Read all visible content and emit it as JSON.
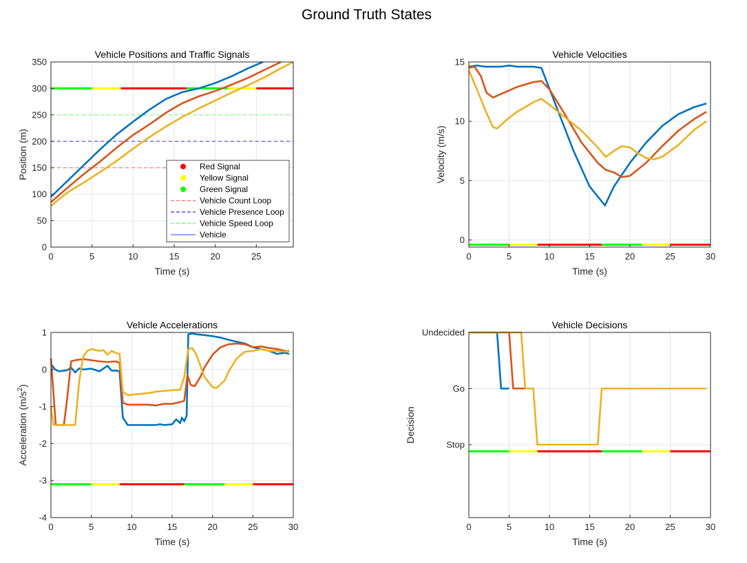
{
  "figure_title": "Ground Truth States",
  "colors": {
    "vehicle_1": "#0072BD",
    "vehicle_2": "#D95319",
    "vehicle_3": "#EDB120",
    "signal_green": "#00FF00",
    "signal_yellow": "#FFFF00",
    "signal_red": "#FF0000",
    "count_loop": "#FF6666",
    "presence_loop": "#3333FF",
    "speed_loop": "#66FF66",
    "legend_vehicle": "#6666FF"
  },
  "chart_data": [
    {
      "id": "positions",
      "type": "line",
      "title": "Vehicle Positions and Traffic Signals",
      "xlabel": "Time (s)",
      "ylabel": "Position (m)",
      "xlim": [
        0,
        29.5
      ],
      "ylim": [
        0,
        350
      ],
      "xticks": [
        0,
        5,
        10,
        15,
        20,
        25
      ],
      "yticks": [
        0,
        50,
        100,
        150,
        200,
        250,
        300,
        350
      ],
      "grid": true,
      "legend_location": "lower-right",
      "legend": [
        {
          "label": "Red Signal",
          "kind": "dot",
          "color": "#FF0000"
        },
        {
          "label": "Yellow Signal",
          "kind": "dot",
          "color": "#FFFF00"
        },
        {
          "label": "Green Signal",
          "kind": "dot",
          "color": "#00FF00"
        },
        {
          "label": "Vehicle Count Loop",
          "kind": "dash",
          "color": "#FF6666"
        },
        {
          "label": "Vehicle Presence Loop",
          "kind": "dash",
          "color": "#3333FF"
        },
        {
          "label": "Vehicle Speed Loop",
          "kind": "dash",
          "color": "#66FF66"
        },
        {
          "label": "Vehicle",
          "kind": "line",
          "color": "#6666FF"
        }
      ],
      "loops": [
        {
          "y": 150,
          "color": "#FF6666"
        },
        {
          "y": 200,
          "color": "#3333FF"
        },
        {
          "y": 250,
          "color": "#66FF66"
        }
      ],
      "signal_y": 300,
      "signal_phases": [
        {
          "start": 0,
          "end": 5,
          "color": "#00FF00"
        },
        {
          "start": 5,
          "end": 8.5,
          "color": "#FFFF00"
        },
        {
          "start": 8.5,
          "end": 16.5,
          "color": "#FF0000"
        },
        {
          "start": 16.5,
          "end": 21.5,
          "color": "#00FF00"
        },
        {
          "start": 21.5,
          "end": 25,
          "color": "#FFFF00"
        },
        {
          "start": 25,
          "end": 29.5,
          "color": "#FF0000"
        }
      ],
      "series": [
        {
          "color": "#0072BD",
          "x": [
            0,
            2,
            4,
            6,
            8,
            10,
            12,
            14,
            16,
            18,
            20,
            22,
            24,
            25.8
          ],
          "y": [
            95,
            125,
            155,
            185,
            213,
            237,
            260,
            280,
            293,
            300,
            310,
            323,
            338,
            350
          ]
        },
        {
          "color": "#D95319",
          "x": [
            0,
            2,
            4,
            6,
            8,
            10,
            12,
            14,
            16,
            18,
            20,
            22,
            24,
            26,
            28
          ],
          "y": [
            85,
            112,
            138,
            162,
            188,
            212,
            232,
            254,
            272,
            285,
            295,
            307,
            320,
            335,
            350
          ]
        },
        {
          "color": "#EDB120",
          "x": [
            0,
            2,
            4,
            6,
            8,
            10,
            12,
            14,
            16,
            18,
            20,
            22,
            24,
            26,
            28,
            29.5
          ],
          "y": [
            78,
            103,
            122,
            142,
            163,
            186,
            208,
            228,
            246,
            262,
            277,
            292,
            306,
            321,
            338,
            350
          ]
        }
      ]
    },
    {
      "id": "velocities",
      "type": "line",
      "title": "Vehicle Velocities",
      "xlabel": "Time (s)",
      "ylabel": "Velocity (m/s)",
      "xlim": [
        0,
        30
      ],
      "ylim": [
        -0.6,
        15
      ],
      "xticks": [
        0,
        5,
        10,
        15,
        20,
        25,
        30
      ],
      "yticks": [
        0,
        5,
        10,
        15
      ],
      "grid": true,
      "signal_y": -0.4,
      "signal_phases": [
        {
          "start": 0,
          "end": 5,
          "color": "#00FF00"
        },
        {
          "start": 5,
          "end": 8.5,
          "color": "#FFFF00"
        },
        {
          "start": 8.5,
          "end": 16.5,
          "color": "#FF0000"
        },
        {
          "start": 16.5,
          "end": 21.5,
          "color": "#00FF00"
        },
        {
          "start": 21.5,
          "end": 25,
          "color": "#FFFF00"
        },
        {
          "start": 25,
          "end": 30,
          "color": "#FF0000"
        }
      ],
      "series": [
        {
          "color": "#0072BD",
          "x": [
            0,
            1,
            2,
            3,
            4,
            5,
            6,
            7,
            8,
            9,
            11,
            13,
            15,
            16.9,
            18,
            20,
            22,
            24,
            26,
            28,
            29.5
          ],
          "y": [
            14.6,
            14.7,
            14.6,
            14.6,
            14.6,
            14.7,
            14.6,
            14.6,
            14.6,
            14.5,
            11,
            7.5,
            4.5,
            2.9,
            4.5,
            6.5,
            8.2,
            9.6,
            10.6,
            11.2,
            11.5
          ]
        },
        {
          "color": "#D95319",
          "x": [
            0,
            0.7,
            1.5,
            2.2,
            3,
            4,
            5,
            6,
            7,
            8,
            9,
            10,
            12,
            14,
            16,
            17,
            18,
            19,
            20,
            22,
            24,
            26,
            28,
            29.5
          ],
          "y": [
            14.5,
            14.6,
            13.8,
            12.4,
            12.0,
            12.3,
            12.6,
            12.9,
            13.1,
            13.3,
            13.4,
            12.7,
            10.5,
            8.2,
            6.5,
            5.9,
            5.7,
            5.3,
            5.4,
            6.5,
            7.9,
            9.2,
            10.2,
            10.8
          ]
        },
        {
          "color": "#EDB120",
          "x": [
            0,
            1,
            2,
            3,
            3.5,
            4,
            5,
            6,
            7,
            8,
            9,
            10,
            12,
            14,
            16,
            17,
            18,
            19,
            20,
            21,
            22,
            23,
            24,
            26,
            28,
            29.5
          ],
          "y": [
            14.3,
            12.7,
            11.0,
            9.5,
            9.4,
            9.7,
            10.3,
            10.8,
            11.2,
            11.6,
            11.9,
            11.4,
            10.3,
            9.2,
            7.8,
            7.0,
            7.5,
            7.9,
            7.8,
            7.3,
            6.9,
            6.8,
            7.0,
            8.0,
            9.3,
            10.0
          ]
        }
      ]
    },
    {
      "id": "accelerations",
      "type": "line",
      "title": "Vehicle Accelerations",
      "xlabel": "Time (s)",
      "ylabel": "Acceleration (m/s²)",
      "ylabel_base": "Acceleration (m/s",
      "ylabel_sup": "2",
      "ylabel_end": ")",
      "xlim": [
        0,
        30
      ],
      "ylim": [
        -4,
        1
      ],
      "xticks": [
        0,
        5,
        10,
        15,
        20,
        25,
        30
      ],
      "yticks": [
        -4,
        -3,
        -2,
        -1,
        0,
        1
      ],
      "grid": true,
      "signal_y": -3.1,
      "signal_phases": [
        {
          "start": 0,
          "end": 5,
          "color": "#00FF00"
        },
        {
          "start": 5,
          "end": 8.5,
          "color": "#FFFF00"
        },
        {
          "start": 8.5,
          "end": 16.5,
          "color": "#FF0000"
        },
        {
          "start": 16.5,
          "end": 21.5,
          "color": "#00FF00"
        },
        {
          "start": 21.5,
          "end": 25,
          "color": "#FFFF00"
        },
        {
          "start": 25,
          "end": 30,
          "color": "#FF0000"
        }
      ],
      "series": [
        {
          "color": "#0072BD",
          "x": [
            0,
            0.5,
            1,
            2,
            2.5,
            3,
            3.5,
            4,
            5,
            6,
            7,
            7.5,
            8,
            8.5,
            8.9,
            9.5,
            10,
            11,
            12,
            13,
            13.5,
            14,
            15,
            15.5,
            16,
            16.2,
            16.5,
            16.8,
            17,
            17.5,
            18,
            19,
            20,
            21,
            22,
            23,
            24,
            25,
            26,
            27,
            28,
            29,
            29.5
          ],
          "y": [
            0.15,
            0.0,
            -0.05,
            -0.02,
            0.05,
            -0.08,
            0.03,
            0.0,
            0.02,
            -0.05,
            0.1,
            -0.03,
            -0.03,
            -0.05,
            -1.3,
            -1.5,
            -1.5,
            -1.5,
            -1.5,
            -1.5,
            -1.48,
            -1.5,
            -1.48,
            -1.35,
            -1.45,
            -1.3,
            -1.4,
            -1.25,
            0.95,
            0.97,
            0.95,
            0.93,
            0.9,
            0.86,
            0.8,
            0.75,
            0.7,
            0.6,
            0.55,
            0.5,
            0.42,
            0.45,
            0.42
          ]
        },
        {
          "color": "#D95319",
          "x": [
            0,
            0.3,
            0.6,
            1.2,
            1.6,
            2,
            2.5,
            3,
            4,
            5,
            6,
            7,
            8,
            8.5,
            8.9,
            9.5,
            10,
            11,
            12,
            13,
            14,
            15,
            16,
            16.5,
            16.9,
            17.3,
            17.8,
            18.5,
            19,
            20,
            21,
            22,
            23,
            24,
            25,
            26,
            27,
            28,
            29,
            29.5
          ],
          "y": [
            0.3,
            -0.6,
            -1.5,
            -1.5,
            -1.5,
            -0.8,
            0.22,
            0.25,
            0.28,
            0.25,
            0.22,
            0.2,
            0.22,
            0.18,
            -0.9,
            -0.95,
            -0.95,
            -0.95,
            -0.95,
            -0.97,
            -0.93,
            -0.93,
            -0.88,
            -0.85,
            -0.15,
            -0.42,
            -0.45,
            -0.2,
            0.05,
            0.4,
            0.6,
            0.68,
            0.7,
            0.68,
            0.6,
            0.62,
            0.58,
            0.55,
            0.5,
            0.5
          ]
        },
        {
          "color": "#EDB120",
          "x": [
            0,
            0.3,
            0.6,
            1,
            2,
            3,
            3.5,
            4,
            4.5,
            5,
            6,
            6.5,
            7,
            7.5,
            8,
            8.5,
            8.9,
            9.2,
            9.6,
            10,
            11,
            12,
            13,
            14,
            15,
            16,
            16.5,
            17,
            17.5,
            18,
            18.5,
            19,
            20,
            20.5,
            21,
            21.5,
            22,
            23,
            24,
            25,
            26,
            27,
            28,
            29,
            29.5
          ],
          "y": [
            -1.0,
            -1.5,
            -1.5,
            -1.5,
            -1.5,
            -1.5,
            -0.3,
            0.35,
            0.5,
            0.55,
            0.5,
            0.52,
            0.4,
            0.5,
            0.45,
            0.42,
            -0.6,
            -0.65,
            -0.7,
            -0.68,
            -0.66,
            -0.64,
            -0.6,
            -0.58,
            -0.56,
            -0.55,
            -0.2,
            0.55,
            0.58,
            0.4,
            0.1,
            -0.2,
            -0.48,
            -0.5,
            -0.4,
            -0.3,
            -0.05,
            0.3,
            0.48,
            0.5,
            0.55,
            0.5,
            0.5,
            0.48,
            0.52
          ]
        }
      ]
    },
    {
      "id": "decisions",
      "type": "line",
      "title": "Vehicle Decisions",
      "xlabel": "Time (s)",
      "ylabel": "Decision",
      "xlim": [
        0,
        30
      ],
      "ylim": [
        -1.3,
        2
      ],
      "xticks": [
        0,
        5,
        10,
        15,
        20,
        25,
        30
      ],
      "yticks": [
        0,
        1,
        2
      ],
      "ytick_labels": [
        "Stop",
        "Go",
        "Undecided"
      ],
      "grid": true,
      "signal_y": -0.12,
      "signal_phases": [
        {
          "start": 0,
          "end": 5,
          "color": "#00FF00"
        },
        {
          "start": 5,
          "end": 8.5,
          "color": "#FFFF00"
        },
        {
          "start": 8.5,
          "end": 16.5,
          "color": "#FF0000"
        },
        {
          "start": 16.5,
          "end": 21.5,
          "color": "#00FF00"
        },
        {
          "start": 21.5,
          "end": 25,
          "color": "#FFFF00"
        },
        {
          "start": 25,
          "end": 30,
          "color": "#FF0000"
        }
      ],
      "series": [
        {
          "color": "#0072BD",
          "x": [
            0,
            3.5,
            4.0,
            5.0
          ],
          "y": [
            2,
            2,
            1,
            1
          ]
        },
        {
          "color": "#D95319",
          "x": [
            0,
            5.0,
            5.5,
            7.0
          ],
          "y": [
            2,
            2,
            1,
            1
          ]
        },
        {
          "color": "#EDB120",
          "x": [
            0,
            6.5,
            7.0,
            8.0,
            8.5,
            16.0,
            16.5,
            29.5
          ],
          "y": [
            2,
            2,
            1,
            1,
            0,
            0,
            1,
            1
          ]
        }
      ]
    }
  ]
}
